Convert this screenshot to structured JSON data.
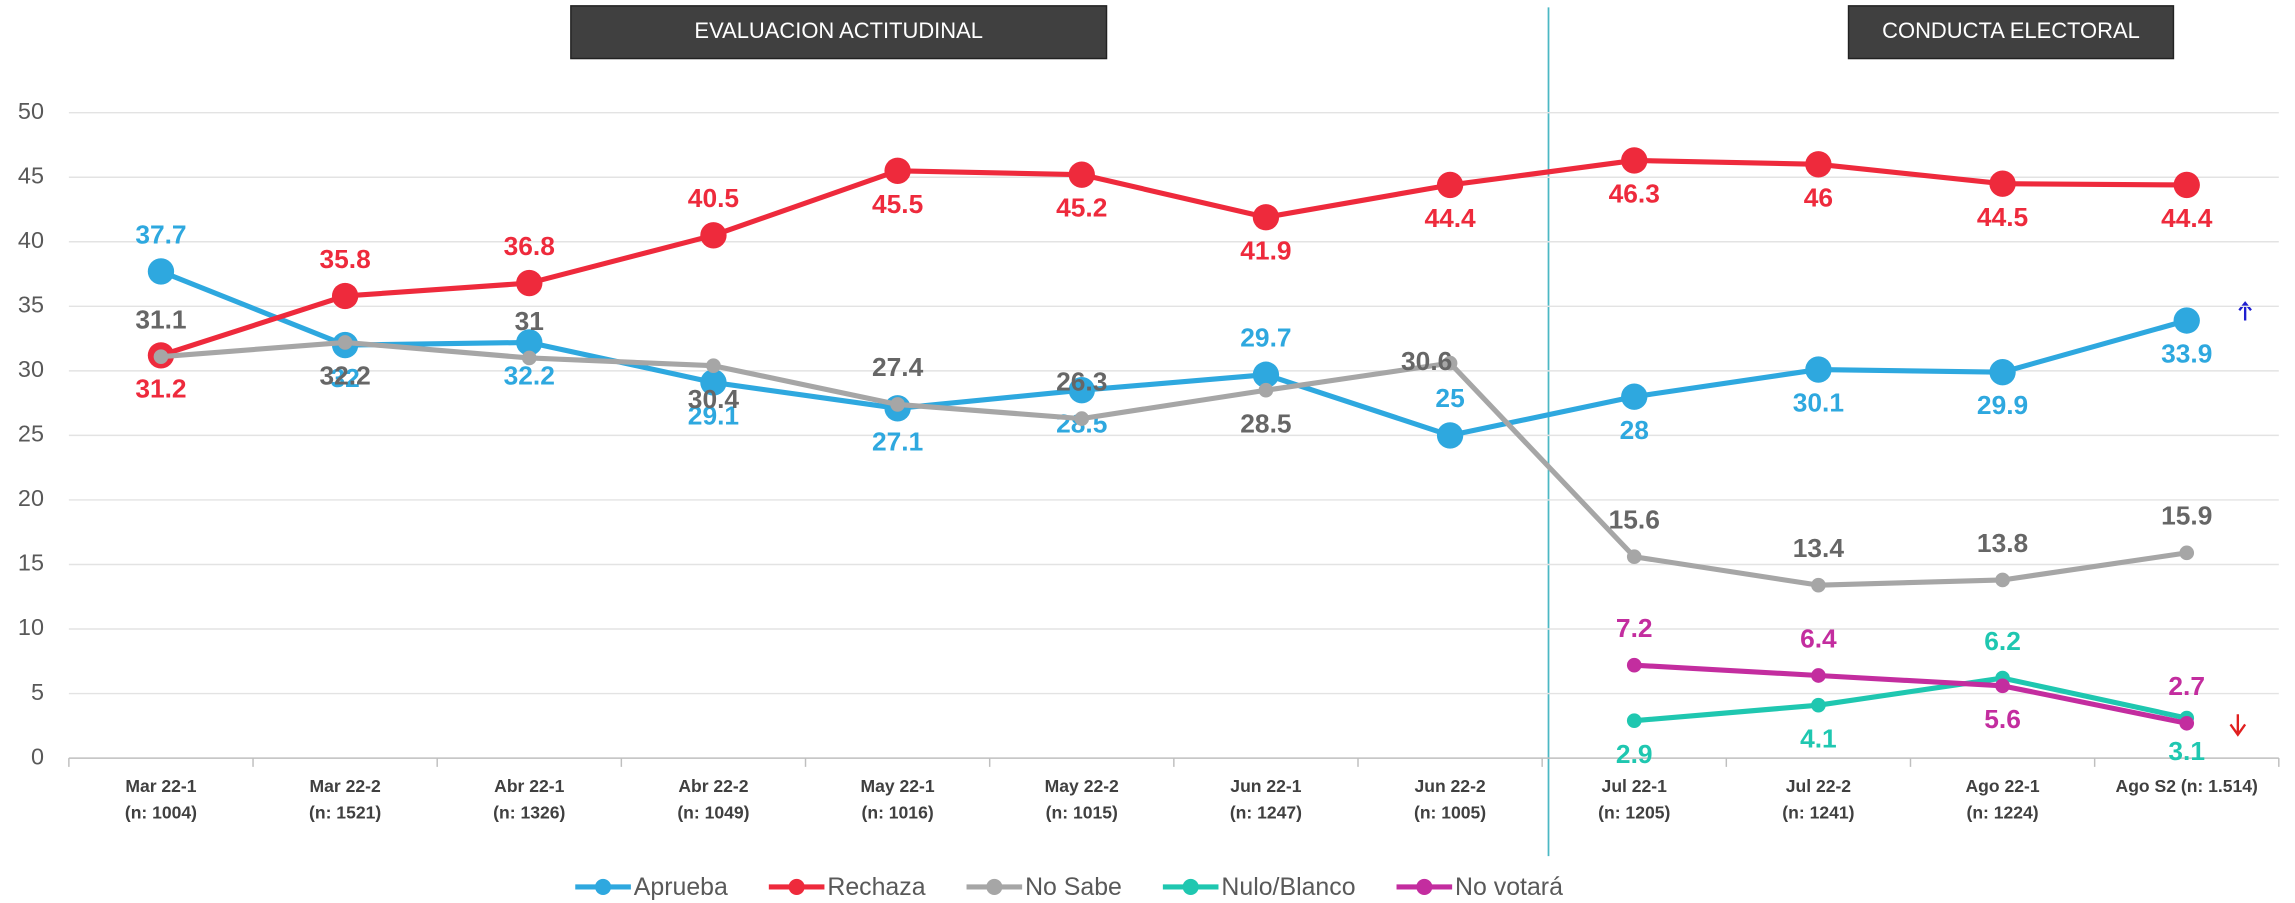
{
  "chart_data": {
    "type": "line",
    "annotations": [
      "EVALUACION ACTITUDINAL",
      "CONDUCTA ELECTORAL"
    ],
    "categories": [
      [
        "Mar 22-1",
        "(n: 1004)"
      ],
      [
        "Mar 22-2",
        "(n: 1521)"
      ],
      [
        "Abr 22-1",
        "(n: 1326)"
      ],
      [
        "Abr 22-2",
        "(n: 1049)"
      ],
      [
        "May 22-1",
        "(n: 1016)"
      ],
      [
        "May 22-2",
        "(n: 1015)"
      ],
      [
        "Jun 22-1",
        "(n: 1247)"
      ],
      [
        "Jun 22-2",
        "(n: 1005)"
      ],
      [
        "Jul 22-1",
        "(n: 1205)"
      ],
      [
        "Jul 22-2",
        "(n: 1241)"
      ],
      [
        "Ago 22-1",
        "(n: 1224)"
      ],
      [
        "Ago S2 (n: 1.514)"
      ]
    ],
    "series": [
      {
        "name": "Aprueba",
        "color": "#2ea8df",
        "values": [
          37.7,
          32,
          32.2,
          29.1,
          27.1,
          28.5,
          29.7,
          25,
          28,
          30.1,
          29.9,
          33.9
        ]
      },
      {
        "name": "Rechaza",
        "color": "#ee2a3c",
        "values": [
          31.2,
          35.8,
          36.8,
          40.5,
          45.5,
          45.2,
          41.9,
          44.4,
          46.3,
          46,
          44.5,
          44.4
        ]
      },
      {
        "name": "No Sabe",
        "color": "#a6a6a6",
        "values": [
          31.1,
          32.2,
          31,
          30.4,
          27.4,
          26.3,
          28.5,
          30.6,
          15.6,
          13.4,
          13.8,
          15.9
        ]
      },
      {
        "name": "Nulo/Blanco",
        "color": "#1fc7b0",
        "values": [
          null,
          null,
          null,
          null,
          null,
          null,
          null,
          null,
          2.9,
          4.1,
          6.2,
          3.1
        ]
      },
      {
        "name": "No votará",
        "color": "#c32d9f",
        "values": [
          null,
          null,
          null,
          null,
          null,
          null,
          null,
          null,
          7.2,
          6.4,
          5.6,
          2.7
        ]
      }
    ],
    "ylim": [
      0,
      50
    ],
    "yticks": [
      0,
      5,
      10,
      15,
      20,
      25,
      30,
      35,
      40,
      45,
      50
    ],
    "grid": true
  }
}
